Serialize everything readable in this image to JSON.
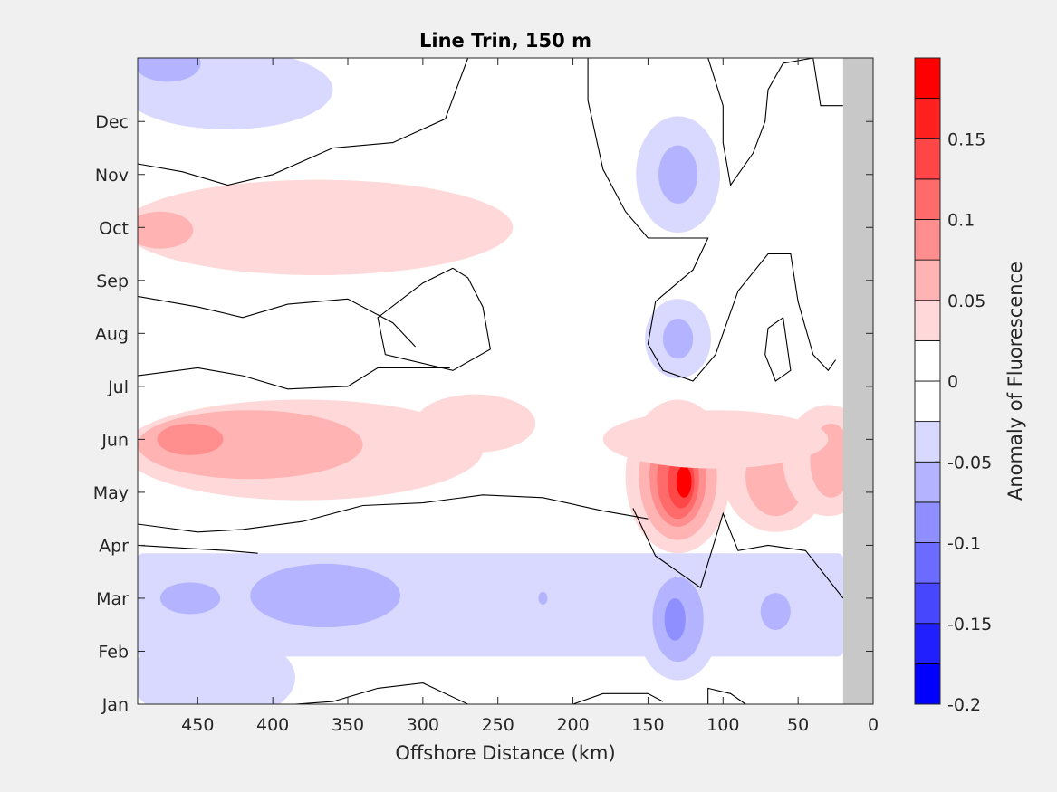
{
  "chart_data": {
    "type": "heatmap",
    "subtype": "filled-contour",
    "title": "Line Trin, 150 m",
    "xlabel": "Offshore Distance (km)",
    "ylabel": "",
    "colorbar_label": "Anomaly of Fluorescence",
    "x_direction": "reversed",
    "xlim": [
      0,
      490
    ],
    "ylim": [
      1,
      13.2
    ],
    "x_ticks": [
      450,
      400,
      350,
      300,
      250,
      200,
      150,
      100,
      50,
      0
    ],
    "y_ticks": [
      {
        "value": 1,
        "label": "Jan"
      },
      {
        "value": 2,
        "label": "Feb"
      },
      {
        "value": 3,
        "label": "Mar"
      },
      {
        "value": 4,
        "label": "Apr"
      },
      {
        "value": 5,
        "label": "May"
      },
      {
        "value": 6,
        "label": "Jun"
      },
      {
        "value": 7,
        "label": "Jul"
      },
      {
        "value": 8,
        "label": "Aug"
      },
      {
        "value": 9,
        "label": "Sep"
      },
      {
        "value": 10,
        "label": "Oct"
      },
      {
        "value": 11,
        "label": "Nov"
      },
      {
        "value": 12,
        "label": "Dec"
      }
    ],
    "no_data_region": {
      "x_range": [
        0,
        20
      ],
      "color": "#c8c8c8"
    },
    "colorbar": {
      "range": [
        -0.2,
        0.2
      ],
      "levels": [
        -0.2,
        -0.175,
        -0.15,
        -0.125,
        -0.1,
        -0.075,
        -0.05,
        -0.025,
        0,
        0.025,
        0.05,
        0.075,
        0.1,
        0.125,
        0.15,
        0.175,
        0.2
      ],
      "colors": [
        "#0000ff",
        "#2020ff",
        "#4747ff",
        "#6b6bff",
        "#8f8fff",
        "#b3b3ff",
        "#d9d9ff",
        "#ffffff",
        "#ffffff",
        "#ffd9d9",
        "#ffb3b3",
        "#ff8f8f",
        "#ff6b6b",
        "#ff4747",
        "#ff2020",
        "#ff0000"
      ],
      "tick_values": [
        0.15,
        0.1,
        0.05,
        0,
        -0.05,
        -0.1,
        -0.15,
        -0.2
      ],
      "tick_labels": [
        "0.15",
        "0.1",
        "0.05",
        "0",
        "-0.05",
        "-0.1",
        "-0.15",
        "-0.2"
      ]
    },
    "features": [
      {
        "kind": "blob",
        "x": 430,
        "y": 12.6,
        "rx": 70,
        "ry": 0.75,
        "value": -0.03
      },
      {
        "kind": "blob",
        "x": 470,
        "y": 13.1,
        "rx": 22,
        "ry": 0.35,
        "value": -0.06
      },
      {
        "kind": "blob",
        "x": 370,
        "y": 10.0,
        "rx": 130,
        "ry": 0.9,
        "value": 0.035
      },
      {
        "kind": "blob",
        "x": 475,
        "y": 9.95,
        "rx": 22,
        "ry": 0.35,
        "value": 0.055
      },
      {
        "kind": "blob",
        "x": 130,
        "y": 11.0,
        "rx": 28,
        "ry": 1.1,
        "value": -0.04
      },
      {
        "kind": "blob",
        "x": 130,
        "y": 11.0,
        "rx": 13,
        "ry": 0.55,
        "value": -0.065
      },
      {
        "kind": "blob",
        "x": 130,
        "y": 7.9,
        "rx": 22,
        "ry": 0.75,
        "value": -0.04
      },
      {
        "kind": "blob",
        "x": 130,
        "y": 7.9,
        "rx": 10,
        "ry": 0.38,
        "value": -0.065
      },
      {
        "kind": "blob",
        "x": 380,
        "y": 5.8,
        "rx": 120,
        "ry": 0.95,
        "value": 0.035
      },
      {
        "kind": "blob",
        "x": 415,
        "y": 5.9,
        "rx": 75,
        "ry": 0.65,
        "value": 0.06
      },
      {
        "kind": "blob",
        "x": 455,
        "y": 6.0,
        "rx": 22,
        "ry": 0.3,
        "value": 0.085
      },
      {
        "kind": "blob",
        "x": 265,
        "y": 6.3,
        "rx": 40,
        "ry": 0.55,
        "value": 0.035
      },
      {
        "kind": "blob",
        "x": 130,
        "y": 5.3,
        "rx": 35,
        "ry": 1.45,
        "value": 0.035
      },
      {
        "kind": "blob",
        "x": 130,
        "y": 5.3,
        "rx": 26,
        "ry": 1.2,
        "value": 0.06
      },
      {
        "kind": "blob",
        "x": 130,
        "y": 5.3,
        "rx": 19,
        "ry": 0.95,
        "value": 0.085
      },
      {
        "kind": "blob",
        "x": 130,
        "y": 5.25,
        "rx": 14,
        "ry": 0.75,
        "value": 0.11
      },
      {
        "kind": "blob",
        "x": 128,
        "y": 5.2,
        "rx": 9,
        "ry": 0.5,
        "value": 0.14
      },
      {
        "kind": "blob",
        "x": 126,
        "y": 5.2,
        "rx": 5,
        "ry": 0.3,
        "value": 0.18
      },
      {
        "kind": "blob",
        "x": 65,
        "y": 5.3,
        "rx": 35,
        "ry": 1.05,
        "value": 0.035
      },
      {
        "kind": "blob",
        "x": 65,
        "y": 5.3,
        "rx": 20,
        "ry": 0.75,
        "value": 0.06
      },
      {
        "kind": "blob",
        "x": 30,
        "y": 5.6,
        "rx": 30,
        "ry": 1.05,
        "value": 0.035
      },
      {
        "kind": "blob",
        "x": 28,
        "y": 5.6,
        "rx": 14,
        "ry": 0.7,
        "value": 0.06
      },
      {
        "kind": "blob",
        "x": 105,
        "y": 6.0,
        "rx": 75,
        "ry": 0.55,
        "value": 0.035
      },
      {
        "kind": "band",
        "x0": 20,
        "x1": 490,
        "y0": 1.9,
        "y1": 3.85,
        "value": -0.03
      },
      {
        "kind": "blob",
        "x": 440,
        "y": 1.5,
        "rx": 55,
        "ry": 0.85,
        "value": -0.03
      },
      {
        "kind": "blob",
        "x": 455,
        "y": 3.0,
        "rx": 20,
        "ry": 0.3,
        "value": -0.06
      },
      {
        "kind": "blob",
        "x": 365,
        "y": 3.05,
        "rx": 50,
        "ry": 0.6,
        "value": -0.06
      },
      {
        "kind": "blob",
        "x": 130,
        "y": 2.6,
        "rx": 28,
        "ry": 1.15,
        "value": -0.04
      },
      {
        "kind": "blob",
        "x": 130,
        "y": 2.6,
        "rx": 17,
        "ry": 0.8,
        "value": -0.065
      },
      {
        "kind": "blob",
        "x": 132,
        "y": 2.6,
        "rx": 7,
        "ry": 0.4,
        "value": -0.1
      },
      {
        "kind": "blob",
        "x": 65,
        "y": 2.75,
        "rx": 10,
        "ry": 0.35,
        "value": -0.065
      },
      {
        "kind": "blob",
        "x": 220,
        "y": 3.0,
        "rx": 3,
        "ry": 0.12,
        "value": -0.065
      }
    ],
    "zero_contours": [
      [
        [
          490,
          11.2
        ],
        [
          460,
          11.05
        ],
        [
          430,
          10.8
        ],
        [
          400,
          11.0
        ],
        [
          360,
          11.5
        ],
        [
          320,
          11.6
        ],
        [
          285,
          12.05
        ],
        [
          270,
          13.2
        ]
      ],
      [
        [
          490,
          8.7
        ],
        [
          450,
          8.5
        ],
        [
          420,
          8.3
        ],
        [
          390,
          8.55
        ],
        [
          350,
          8.65
        ],
        [
          320,
          8.2
        ],
        [
          305,
          7.75
        ]
      ],
      [
        [
          490,
          7.2
        ],
        [
          450,
          7.35
        ],
        [
          420,
          7.2
        ],
        [
          390,
          6.95
        ],
        [
          350,
          7.0
        ],
        [
          330,
          7.35
        ],
        [
          310,
          7.35
        ],
        [
          282,
          7.35
        ]
      ],
      [
        [
          490,
          4.4
        ],
        [
          450,
          4.25
        ],
        [
          420,
          4.3
        ],
        [
          380,
          4.45
        ],
        [
          340,
          4.75
        ],
        [
          300,
          4.8
        ],
        [
          260,
          4.95
        ],
        [
          220,
          4.9
        ],
        [
          180,
          4.65
        ],
        [
          160,
          4.55
        ],
        [
          150,
          4.5
        ]
      ],
      [
        [
          490,
          4.0
        ],
        [
          460,
          3.95
        ],
        [
          430,
          3.9
        ],
        [
          410,
          3.85
        ]
      ],
      [
        [
          280,
          9.23
        ],
        [
          300,
          8.95
        ],
        [
          330,
          8.3
        ],
        [
          325,
          7.6
        ],
        [
          280,
          7.3
        ],
        [
          255,
          7.7
        ],
        [
          260,
          8.5
        ],
        [
          270,
          9.05
        ],
        [
          280,
          9.23
        ]
      ],
      [
        [
          190,
          13.2
        ],
        [
          190,
          12.4
        ],
        [
          180,
          11.1
        ],
        [
          165,
          10.3
        ],
        [
          150,
          9.8
        ],
        [
          110,
          9.8
        ],
        [
          120,
          9.2
        ],
        [
          145,
          8.6
        ],
        [
          150,
          7.8
        ],
        [
          140,
          7.3
        ],
        [
          120,
          7.1
        ],
        [
          105,
          7.6
        ],
        [
          90,
          8.8
        ],
        [
          70,
          9.5
        ],
        [
          55,
          9.5
        ],
        [
          50,
          8.6
        ],
        [
          40,
          7.6
        ],
        [
          30,
          7.3
        ],
        [
          25,
          7.5
        ]
      ],
      [
        [
          180,
          13.2
        ],
        [
          110,
          13.2
        ],
        [
          100,
          12.3
        ],
        [
          100,
          11.6
        ],
        [
          95,
          10.8
        ],
        [
          80,
          11.4
        ],
        [
          72,
          12.0
        ],
        [
          70,
          12.6
        ],
        [
          60,
          13.1
        ],
        [
          40,
          13.2
        ],
        [
          35,
          12.3
        ],
        [
          20,
          12.3
        ]
      ],
      [
        [
          60,
          8.3
        ],
        [
          70,
          8.1
        ],
        [
          72,
          7.6
        ],
        [
          65,
          7.1
        ],
        [
          55,
          7.3
        ],
        [
          60,
          8.3
        ]
      ],
      [
        [
          20,
          3.0
        ],
        [
          45,
          3.9
        ],
        [
          70,
          4.0
        ],
        [
          90,
          3.9
        ],
        [
          100,
          4.6
        ],
        [
          115,
          3.2
        ],
        [
          145,
          3.8
        ],
        [
          160,
          4.7
        ]
      ],
      [
        [
          200,
          1.0
        ],
        [
          180,
          1.2
        ],
        [
          150,
          1.2
        ],
        [
          140,
          1.05
        ]
      ],
      [
        [
          270,
          1.0
        ],
        [
          300,
          1.4
        ],
        [
          330,
          1.3
        ],
        [
          360,
          1.05
        ],
        [
          385,
          1.0
        ]
      ],
      [
        [
          110,
          1.0
        ],
        [
          110,
          1.3
        ],
        [
          95,
          1.2
        ],
        [
          85,
          1.0
        ]
      ]
    ]
  }
}
